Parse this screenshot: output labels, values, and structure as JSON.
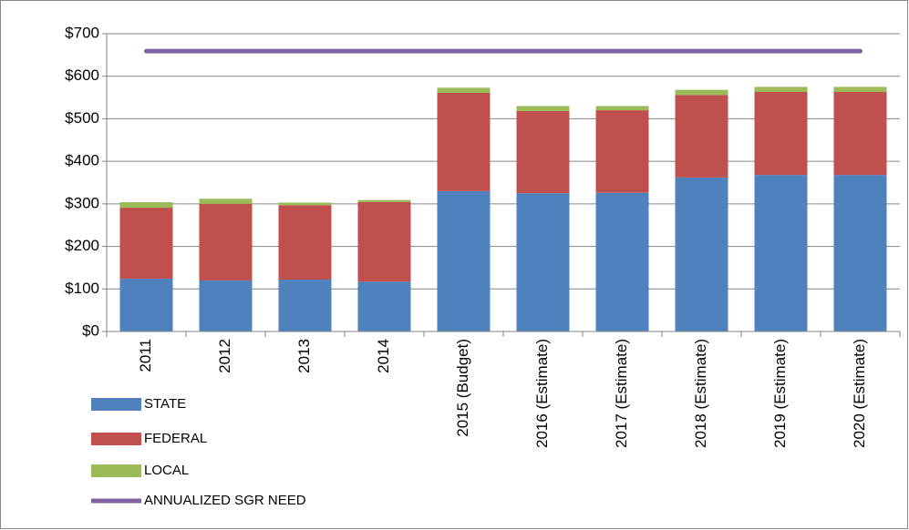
{
  "chart_data": {
    "type": "bar",
    "stacked": true,
    "categories": [
      "2011",
      "2012",
      "2013",
      "2014",
      "2015 (Budget)",
      "2016 (Estimate)",
      "2017 (Estimate)",
      "2018 (Estimate)",
      "2019 (Estimate)",
      "2020 (Estimate)"
    ],
    "series": [
      {
        "name": "STATE",
        "color": "#4f81bd",
        "values": [
          124,
          120,
          122,
          117,
          330,
          325,
          326,
          362,
          368,
          368
        ]
      },
      {
        "name": "FEDERAL",
        "color": "#c0504d",
        "values": [
          167,
          180,
          175,
          187,
          231,
          193,
          194,
          194,
          195,
          195
        ]
      },
      {
        "name": "LOCAL",
        "color": "#9bbb59",
        "values": [
          13,
          12,
          6,
          5,
          12,
          12,
          10,
          12,
          12,
          12
        ]
      },
      {
        "name": "ANNUALIZED SGR NEED",
        "color": "#8064a2",
        "type": "line",
        "values": [
          659,
          659,
          659,
          659,
          659,
          659,
          659,
          659,
          659,
          659
        ]
      }
    ],
    "ylim": [
      0,
      700
    ],
    "yticks": [
      {
        "value": 0,
        "label": "$0"
      },
      {
        "value": 100,
        "label": "$100"
      },
      {
        "value": 200,
        "label": "$200"
      },
      {
        "value": 300,
        "label": "$300"
      },
      {
        "value": 400,
        "label": "$400"
      },
      {
        "value": 500,
        "label": "$500"
      },
      {
        "value": 600,
        "label": "$600"
      },
      {
        "value": 700,
        "label": "$700"
      }
    ],
    "grid": true,
    "legend": "bottom-left"
  }
}
